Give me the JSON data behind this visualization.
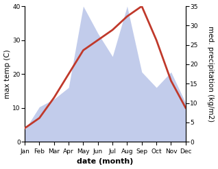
{
  "months": [
    "Jan",
    "Feb",
    "Mar",
    "Apr",
    "May",
    "Jun",
    "Jul",
    "Aug",
    "Sep",
    "Oct",
    "Nov",
    "Dec"
  ],
  "month_indices": [
    1,
    2,
    3,
    4,
    5,
    6,
    7,
    8,
    9,
    10,
    11,
    12
  ],
  "temp": [
    4,
    7,
    13,
    20,
    27,
    30,
    33,
    37,
    40,
    30,
    18,
    10
  ],
  "precip": [
    3,
    9,
    11,
    14,
    35,
    28,
    22,
    35,
    18,
    14,
    18,
    10
  ],
  "temp_color": "#c0392b",
  "precip_fill_color": "#b8c4e8",
  "precip_fill_alpha": 0.85,
  "temp_ylim": [
    0,
    40
  ],
  "precip_ylim": [
    0,
    35
  ],
  "temp_yticks": [
    0,
    10,
    20,
    30,
    40
  ],
  "precip_yticks": [
    0,
    5,
    10,
    15,
    20,
    25,
    30,
    35
  ],
  "xlabel": "date (month)",
  "ylabel_left": "max temp (C)",
  "ylabel_right": "med. precipitation (kg/m2)",
  "background_color": "#ffffff",
  "line_width": 2.0,
  "xlabel_fontsize": 8,
  "xlabel_fontweight": "bold",
  "ylabel_fontsize": 7.5,
  "tick_fontsize": 6.5
}
